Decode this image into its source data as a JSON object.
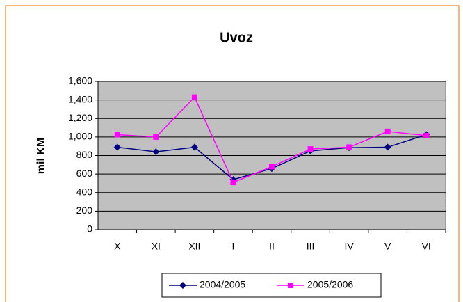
{
  "chart_data": {
    "type": "line",
    "title": "Uvoz",
    "ylabel": "mil KM",
    "categories": [
      "X",
      "XI",
      "XII",
      "I",
      "II",
      "III",
      "IV",
      "V",
      "VI"
    ],
    "series": [
      {
        "name": "2004/2005",
        "color": "#000080",
        "values": [
          890,
          840,
          890,
          540,
          660,
          850,
          885,
          890,
          1025
        ]
      },
      {
        "name": "2005/2006",
        "color": "#ff00ff",
        "values": [
          1025,
          1000,
          1430,
          510,
          680,
          870,
          890,
          1060,
          1015
        ]
      }
    ],
    "ylim": [
      0,
      1600
    ],
    "yticks": [
      0,
      200,
      400,
      600,
      800,
      {
        "value": 1000,
        "label": "1,000"
      },
      {
        "value": 1200,
        "label": "1,200"
      },
      {
        "value": 1400,
        "label": "1,400"
      },
      {
        "value": 1600,
        "label": "1,600"
      }
    ],
    "grid": true,
    "legend": "bottom"
  }
}
